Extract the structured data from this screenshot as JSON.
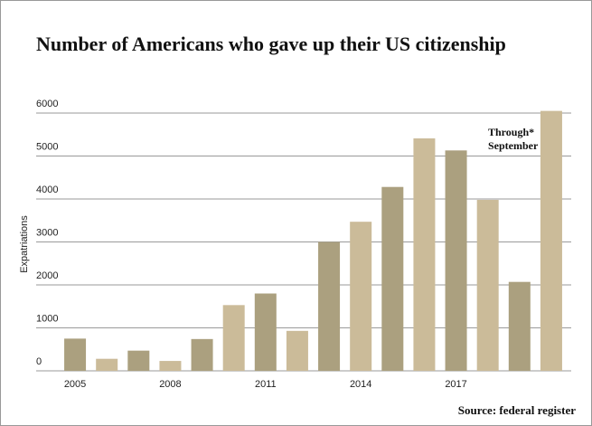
{
  "chart_data": {
    "type": "bar",
    "title": "Number of Americans who gave up their US citizenship",
    "y_label": "Expatriations",
    "annotation": "Through* September",
    "source": "Source: federal register",
    "categories": [
      "2005",
      null,
      null,
      "2008",
      null,
      null,
      "2011",
      null,
      null,
      "2014",
      null,
      null,
      "2017",
      null,
      null,
      null
    ],
    "values": [
      750,
      280,
      470,
      230,
      740,
      1530,
      1800,
      930,
      3000,
      3470,
      4280,
      5410,
      5130,
      3980,
      2070,
      6050
    ],
    "colors": [
      "#aba07f",
      "#cbbb99",
      "#aba07f",
      "#cbbb99",
      "#aba07f",
      "#cbbb99",
      "#aba07f",
      "#cbbb99",
      "#aba07f",
      "#cbbb99",
      "#aba07f",
      "#cbbb99",
      "#aba07f",
      "#cbbb99",
      "#aba07f",
      "#cbbb99"
    ],
    "ylim": [
      0,
      6000
    ],
    "yticks": [
      0,
      1000,
      2000,
      3000,
      4000,
      5000,
      6000
    ],
    "grid": true
  }
}
